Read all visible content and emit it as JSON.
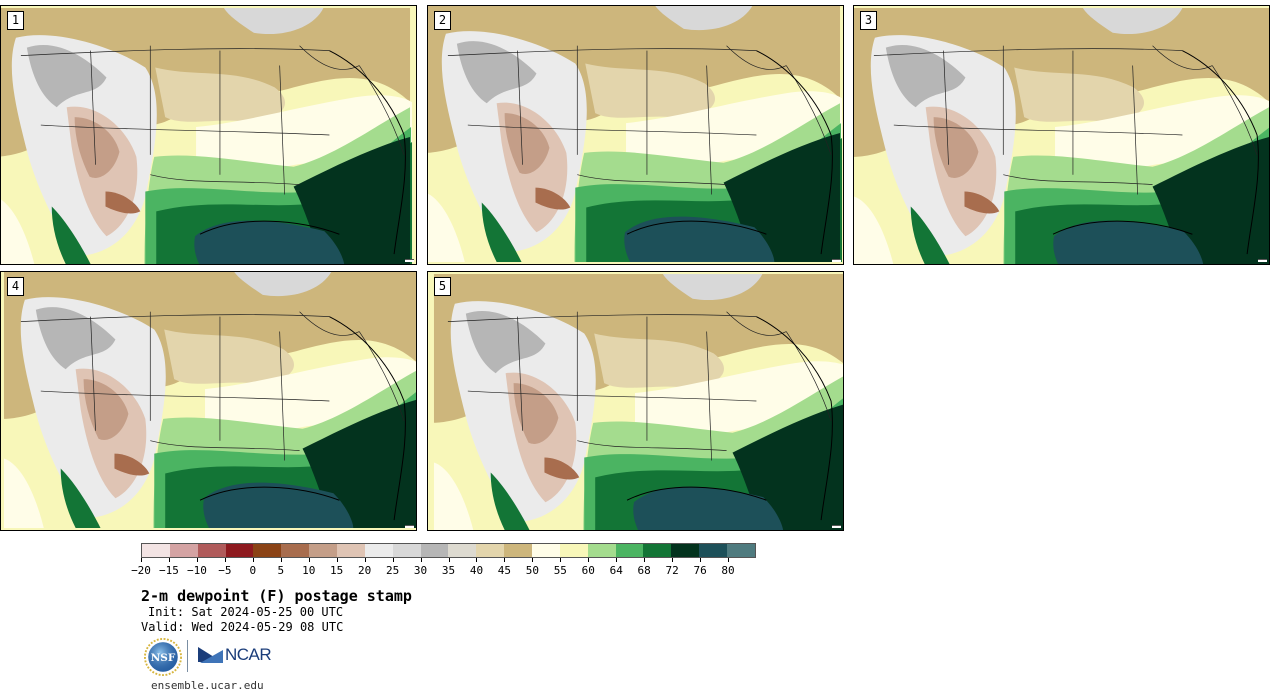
{
  "stamps": [
    {
      "label": "1"
    },
    {
      "label": "2"
    },
    {
      "label": "3"
    },
    {
      "label": "4"
    },
    {
      "label": "5"
    }
  ],
  "colorbar": {
    "colors": [
      "#f3e4e4",
      "#d4a3a3",
      "#b05b5b",
      "#8e1a1f",
      "#8b4316",
      "#a86d4e",
      "#c49e88",
      "#dfc4b4",
      "#ebebeb",
      "#d8d8d8",
      "#b6b6b6",
      "#dddad0",
      "#e3d5ac",
      "#cdb67c",
      "#fffde8",
      "#f8f7b9",
      "#a4dc8e",
      "#4bb462",
      "#137536",
      "#03331e",
      "#1d5059",
      "#4f7b7f"
    ],
    "tick_labels": [
      "−20",
      "−15",
      "−10",
      "−5",
      "0",
      "5",
      "10",
      "15",
      "20",
      "25",
      "30",
      "35",
      "40",
      "45",
      "50",
      "55",
      "60",
      "64",
      "68",
      "72",
      "76",
      "80"
    ]
  },
  "title": "2-m dewpoint (F) postage stamp",
  "init_line": "Init: Sat 2024-05-25 00 UTC",
  "valid_line": "Valid: Wed 2024-05-29 08 UTC",
  "logos": {
    "ncar_text": "NCAR",
    "nsf_text": "NSF"
  },
  "site_url": "ensemble.ucar.edu"
}
